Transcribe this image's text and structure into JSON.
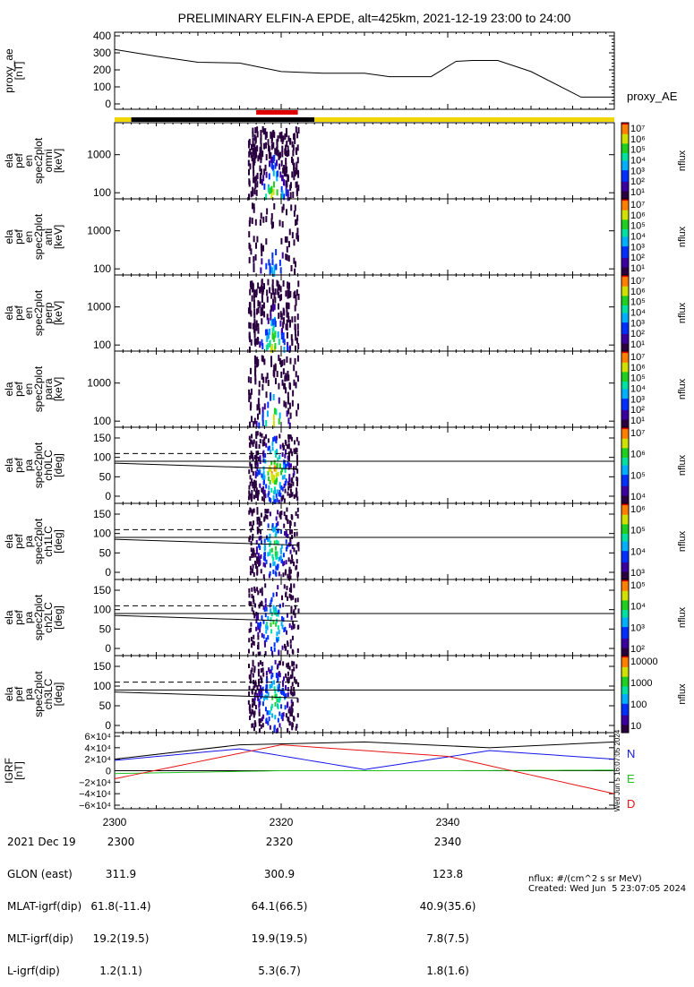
{
  "title": "PRELIMINARY ELFIN-A EPDE, alt=425km, 2021-12-19 23:00 to 24:00",
  "time_axis": {
    "start": 2300,
    "end": 2400,
    "tick_labels": [
      "2300",
      "2320",
      "2340"
    ]
  },
  "status_bar": {
    "science_zone": [
      2317,
      2322
    ],
    "segments": [
      {
        "color": "#f2d600",
        "from": 2300,
        "to": 2302
      },
      {
        "color": "#000000",
        "from": 2302,
        "to": 2324
      },
      {
        "color": "#f2d600",
        "from": 2324,
        "to": 2400
      }
    ]
  },
  "panels": [
    {
      "id": "proxy_ae",
      "ylabel": [
        "proxy_ae",
        "[nT]"
      ],
      "right_label": "proxy_AE",
      "yticks": [
        "400",
        "300",
        "200",
        "100",
        "0"
      ],
      "yrange": [
        0,
        400
      ]
    },
    {
      "id": "en-omni",
      "ylabel": [
        "ela",
        "pef",
        "en",
        "spec2plot",
        "omni",
        "[keV]"
      ],
      "yticks": [
        "1000",
        "100"
      ],
      "cbar_type": "rainbow",
      "cbar_ticks": [
        "10⁷",
        "10⁶",
        "10⁵",
        "10⁴",
        "10³",
        "10²",
        "10¹"
      ],
      "cbar_label": "nflux"
    },
    {
      "id": "en-anti",
      "ylabel": [
        "ela",
        "pef",
        "en",
        "spec2plot",
        "anti",
        "[keV]"
      ],
      "yticks": [
        "1000",
        "100"
      ],
      "cbar_type": "rainbow",
      "cbar_ticks": [
        "10⁷",
        "10⁶",
        "10⁵",
        "10⁴",
        "10³",
        "10²",
        "10¹"
      ],
      "cbar_label": "nflux"
    },
    {
      "id": "en-perp",
      "ylabel": [
        "ela",
        "pef",
        "en",
        "spec2plot",
        "perp",
        "[keV]"
      ],
      "yticks": [
        "1000",
        "100"
      ],
      "cbar_type": "rainbow",
      "cbar_ticks": [
        "10⁷",
        "10⁶",
        "10⁵",
        "10⁴",
        "10³",
        "10²",
        "10¹"
      ],
      "cbar_label": "nflux"
    },
    {
      "id": "en-para",
      "ylabel": [
        "ela",
        "pef",
        "en",
        "spec2plot",
        "para",
        "[keV]"
      ],
      "yticks": [
        "1000",
        "100"
      ],
      "cbar_type": "rainbow",
      "cbar_ticks": [
        "10⁷",
        "10⁶",
        "10⁵",
        "10⁴",
        "10³",
        "10²",
        "10¹"
      ],
      "cbar_label": "nflux"
    },
    {
      "id": "ch0LC",
      "ylabel": [
        "ela",
        "pef",
        "pa",
        "spec2plot",
        "ch0LC",
        "[deg]"
      ],
      "yticks": [
        "150",
        "100",
        "50",
        "0"
      ],
      "cbar_type": "rainbow",
      "cbar_ticks": [
        "10⁷",
        "10⁶",
        "10⁵",
        "10⁴"
      ],
      "cbar_label": "nflux"
    },
    {
      "id": "ch1LC",
      "ylabel": [
        "ela",
        "pef",
        "pa",
        "spec2plot",
        "ch1LC",
        "[deg]"
      ],
      "yticks": [
        "150",
        "100",
        "50",
        "0"
      ],
      "cbar_type": "rainbow",
      "cbar_ticks": [
        "10⁶",
        "10⁵",
        "10⁴",
        "10³"
      ],
      "cbar_label": "nflux"
    },
    {
      "id": "ch2LC",
      "ylabel": [
        "ela",
        "pef",
        "pa",
        "spec2plot",
        "ch2LC",
        "[deg]"
      ],
      "yticks": [
        "150",
        "100",
        "50",
        "0"
      ],
      "cbar_type": "rainbow",
      "cbar_ticks": [
        "10⁵",
        "10⁴",
        "10³",
        "10²"
      ],
      "cbar_label": "nflux"
    },
    {
      "id": "ch3LC",
      "ylabel": [
        "ela",
        "pef",
        "pa",
        "spec2plot",
        "ch3LC",
        "[deg]"
      ],
      "yticks": [
        "150",
        "100",
        "50",
        "0"
      ],
      "cbar_type": "rainbow",
      "cbar_ticks": [
        "10000",
        "1000",
        "100",
        "10"
      ],
      "cbar_label": "nflux"
    },
    {
      "id": "igrf",
      "ylabel": [
        "IGRF",
        "[nT]"
      ],
      "yticks": [
        "6×10⁴",
        "4×10⁴",
        "2×10⁴",
        "0",
        "−2×10⁴",
        "−4×10⁴",
        "−6×10⁴"
      ],
      "legend": [
        {
          "label": "N",
          "color": "#1414e6"
        },
        {
          "label": "E",
          "color": "#1fc21f"
        },
        {
          "label": "D",
          "color": "#e61414"
        }
      ]
    }
  ],
  "side_stamp": "Wed Jun  5 16:07:05 2024",
  "footer": {
    "labels": [
      "2021 Dec 19",
      "GLON (east)",
      "MLAT-igrf(dip)",
      "MLT-igrf(dip)",
      "L-igrf(dip)"
    ],
    "columns": [
      [
        "2300",
        "311.9",
        "61.8(-11.4)",
        "19.2(19.5)",
        "1.2(1.1)"
      ],
      [
        "2320",
        "300.9",
        "64.1(66.5)",
        "19.9(19.5)",
        "5.3(6.7)"
      ],
      [
        "2340",
        "123.8",
        "40.9(35.6)",
        "7.8(7.5)",
        "1.8(1.6)"
      ]
    ],
    "units_note": "nflux: #/(cm^2 s sr MeV)",
    "created": "Created: Wed Jun  5 23:07:05 2024"
  },
  "chart_data": {
    "type": "line",
    "x_unit": "UT (HHMM)",
    "proxy_ae": {
      "x": [
        2300,
        2305,
        2310,
        2315,
        2320,
        2325,
        2330,
        2333,
        2338,
        2341,
        2343,
        2346,
        2350,
        2356,
        2358,
        2400
      ],
      "values": [
        320,
        280,
        245,
        240,
        190,
        180,
        180,
        160,
        160,
        250,
        255,
        255,
        190,
        40,
        40,
        40
      ]
    },
    "footprint_lines": {
      "solid_y": [
        85,
        70
      ],
      "dashed_y": 110,
      "x_range": [
        2300,
        2322
      ]
    },
    "igrf": {
      "series": [
        {
          "name": "N",
          "x": [
            2300,
            2315,
            2330,
            2345,
            2400
          ],
          "values": [
            18000,
            38000,
            2000,
            35000,
            20000
          ]
        },
        {
          "name": "E",
          "x": [
            2300,
            2320,
            2340,
            2400
          ],
          "values": [
            -5000,
            0,
            0,
            1000
          ]
        },
        {
          "name": "D",
          "x": [
            2300,
            2320,
            2340,
            2400
          ],
          "values": [
            -14000,
            45000,
            25000,
            -40000
          ]
        }
      ],
      "ylim": [
        -60000,
        60000
      ]
    }
  }
}
